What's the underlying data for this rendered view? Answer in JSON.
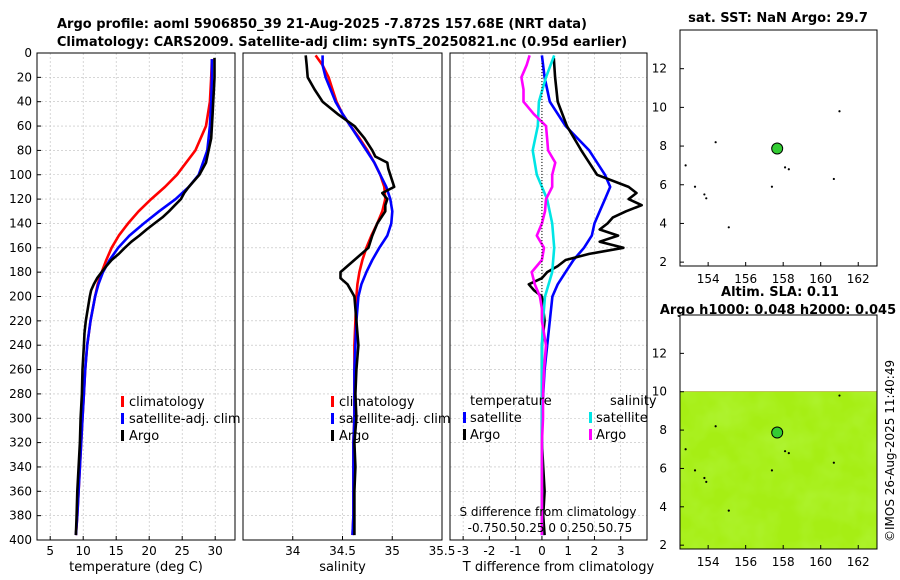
{
  "header": {
    "title_line1": "Argo profile: aoml 5906850_39 21-Aug-2025 -7.872S 157.68E (NRT data)",
    "title_line2": "Climatology: CARS2009. Satellite-adj clim: synTS_20250821.nc (0.95d earlier)"
  },
  "map_titles": {
    "sst": "sat. SST: NaN Argo: 29.7",
    "sla_line1": "Altim. SLA: 0.11",
    "sla_line2": "Argo h1000: 0.048 h2000: 0.045"
  },
  "watermark": "©IMOS 26-Aug-2025 11:40:49",
  "colors": {
    "climatology": "#ff0000",
    "satellite": "#0000ff",
    "argo": "#000000",
    "t_sat": "#0000ff",
    "s_sat": "#00e5e5",
    "s_argo": "#ff00ff",
    "argo_dot": "#33cc33"
  },
  "legends": {
    "temperature": [
      "climatology",
      "satellite-adj. clim",
      "Argo"
    ],
    "salinity": [
      "climatology",
      "satellite-adj. clim",
      "Argo"
    ],
    "diff_t_title": "temperature",
    "diff_s_title": "salinity",
    "diff_t_items": [
      "satellite",
      "Argo"
    ],
    "diff_s_items": [
      "satellite",
      "Argo"
    ]
  },
  "diff_caption": {
    "line1": "S difference from climatology",
    "line2": "-0.750.50.25 0 0.250.50.75"
  },
  "chart_data": [
    {
      "type": "line",
      "name": "temperature",
      "xlabel": "temperature (deg C)",
      "ylabel": "",
      "xlim": [
        3,
        33
      ],
      "ylim": [
        400,
        0
      ],
      "xticks": [
        5,
        10,
        15,
        20,
        25,
        30
      ],
      "yticks": [
        0,
        20,
        40,
        60,
        80,
        100,
        120,
        140,
        160,
        180,
        200,
        220,
        240,
        260,
        280,
        300,
        320,
        340,
        360,
        380,
        400
      ],
      "series": [
        {
          "name": "climatology",
          "depth": [
            5,
            20,
            40,
            60,
            80,
            100,
            110,
            120,
            130,
            140,
            150,
            160,
            170,
            180,
            190,
            200,
            220,
            240,
            260,
            280,
            300,
            320,
            340,
            360,
            380,
            396
          ],
          "values": [
            29.5,
            29.4,
            29.2,
            28.6,
            27.0,
            24.2,
            22.4,
            20.3,
            18.4,
            16.8,
            15.4,
            14.3,
            13.5,
            12.8,
            12.2,
            11.8,
            11.1,
            10.6,
            10.3,
            10.1,
            9.9,
            9.7,
            9.5,
            9.3,
            9.1,
            8.9
          ]
        },
        {
          "name": "satellite-adj. clim",
          "depth": [
            5,
            20,
            40,
            60,
            80,
            100,
            110,
            120,
            130,
            140,
            150,
            160,
            170,
            180,
            190,
            200,
            220,
            240,
            260,
            280,
            300,
            320,
            340,
            360,
            380,
            396
          ],
          "values": [
            29.5,
            29.5,
            29.4,
            29.2,
            28.8,
            27.5,
            26.0,
            24.0,
            21.5,
            19.2,
            17.0,
            15.3,
            14.0,
            13.0,
            12.3,
            11.8,
            11.1,
            10.6,
            10.3,
            10.1,
            9.9,
            9.7,
            9.5,
            9.3,
            9.1,
            8.9
          ]
        },
        {
          "name": "Argo",
          "depth": [
            4,
            10,
            20,
            30,
            40,
            50,
            60,
            70,
            80,
            90,
            100,
            110,
            115,
            120,
            125,
            130,
            135,
            140,
            145,
            150,
            155,
            160,
            165,
            170,
            175,
            180,
            185,
            190,
            195,
            200,
            210,
            220,
            230,
            240,
            260,
            280,
            300,
            320,
            340,
            360,
            380,
            396
          ],
          "values": [
            29.9,
            29.9,
            29.9,
            29.8,
            29.7,
            29.6,
            29.5,
            29.4,
            29.0,
            28.6,
            27.6,
            26.0,
            25.3,
            24.8,
            23.9,
            23.0,
            22.0,
            20.8,
            19.6,
            18.5,
            17.3,
            16.3,
            15.4,
            14.3,
            13.5,
            12.8,
            12.1,
            11.6,
            11.2,
            11.0,
            10.7,
            10.4,
            10.2,
            10.1,
            9.9,
            9.8,
            9.6,
            9.5,
            9.3,
            9.1,
            9.0,
            8.9
          ]
        }
      ]
    },
    {
      "type": "line",
      "name": "salinity",
      "xlabel": "salinity",
      "ylabel": "",
      "xlim": [
        33.5,
        35.5
      ],
      "ylim": [
        400,
        0
      ],
      "xticks": [
        34,
        34.5,
        35,
        35.5
      ],
      "series": [
        {
          "name": "climatology",
          "depth": [
            2,
            10,
            20,
            30,
            40,
            50,
            60,
            70,
            80,
            90,
            100,
            110,
            120,
            130,
            140,
            150,
            160,
            170,
            180,
            190,
            200,
            220,
            240,
            260,
            280,
            300,
            320,
            340,
            360,
            380,
            396
          ],
          "values": [
            34.23,
            34.3,
            34.36,
            34.4,
            34.44,
            34.5,
            34.58,
            34.67,
            34.75,
            34.82,
            34.88,
            34.92,
            34.93,
            34.9,
            34.85,
            34.79,
            34.74,
            34.7,
            34.67,
            34.65,
            34.64,
            34.63,
            34.62,
            34.62,
            34.62,
            34.62,
            34.61,
            34.61,
            34.61,
            34.61,
            34.6
          ]
        },
        {
          "name": "satellite-adj. clim",
          "depth": [
            2,
            10,
            20,
            30,
            40,
            50,
            60,
            70,
            80,
            90,
            100,
            110,
            120,
            130,
            140,
            150,
            160,
            170,
            180,
            190,
            200,
            220,
            240,
            260,
            280,
            300,
            320,
            340,
            360,
            380,
            396
          ],
          "values": [
            34.3,
            34.3,
            34.33,
            34.38,
            34.43,
            34.5,
            34.58,
            34.66,
            34.74,
            34.82,
            34.88,
            34.94,
            34.98,
            35.0,
            34.99,
            34.95,
            34.87,
            34.8,
            34.74,
            34.69,
            34.66,
            34.64,
            34.63,
            34.62,
            34.62,
            34.62,
            34.61,
            34.61,
            34.61,
            34.61,
            34.6
          ]
        },
        {
          "name": "Argo",
          "depth": [
            2,
            10,
            20,
            30,
            40,
            50,
            60,
            70,
            80,
            85,
            90,
            95,
            100,
            110,
            115,
            120,
            125,
            130,
            140,
            150,
            160,
            170,
            180,
            185,
            190,
            200,
            210,
            220,
            240,
            260,
            280,
            300,
            320,
            340,
            360,
            380,
            396
          ],
          "values": [
            34.13,
            34.14,
            34.15,
            34.22,
            34.3,
            34.45,
            34.62,
            34.72,
            34.8,
            34.83,
            34.95,
            34.96,
            34.98,
            35.02,
            34.9,
            34.95,
            34.93,
            34.93,
            34.85,
            34.8,
            34.76,
            34.62,
            34.48,
            34.48,
            34.55,
            34.62,
            34.63,
            34.64,
            34.66,
            34.64,
            34.63,
            34.64,
            34.62,
            34.63,
            34.62,
            34.62,
            34.62
          ]
        }
      ]
    },
    {
      "type": "line",
      "name": "difference",
      "xlabel": "T difference from climatology",
      "ylabel": "",
      "xlim": [
        -3.5,
        4
      ],
      "ylim": [
        400,
        0
      ],
      "xticks": [
        -3,
        -2,
        -1,
        0,
        1,
        2,
        3
      ],
      "series": [
        {
          "name": "temperature satellite",
          "depth": [
            2,
            20,
            40,
            60,
            80,
            100,
            110,
            120,
            130,
            140,
            150,
            160,
            170,
            180,
            190,
            200,
            220,
            240,
            260,
            280,
            300,
            320,
            340,
            360,
            380,
            396
          ],
          "values": [
            0.0,
            0.1,
            0.3,
            0.9,
            1.8,
            2.4,
            2.6,
            2.4,
            2.2,
            2.0,
            1.9,
            1.6,
            1.2,
            0.9,
            0.6,
            0.4,
            0.3,
            0.2,
            0.1,
            0.05,
            0.0,
            0.0,
            0.0,
            0.0,
            0.0,
            0.0
          ]
        },
        {
          "name": "temperature Argo",
          "depth": [
            4,
            20,
            40,
            60,
            80,
            100,
            110,
            115,
            120,
            125,
            130,
            135,
            140,
            145,
            150,
            155,
            160,
            165,
            170,
            175,
            180,
            185,
            190,
            195,
            200,
            210,
            220,
            240,
            260,
            280,
            300,
            320,
            340,
            360,
            380,
            396
          ],
          "values": [
            0.45,
            0.5,
            0.6,
            0.95,
            1.5,
            2.1,
            3.3,
            3.6,
            3.3,
            3.8,
            3.2,
            2.7,
            2.5,
            2.2,
            2.9,
            2.2,
            3.1,
            1.8,
            0.9,
            0.6,
            0.2,
            0.0,
            -0.5,
            -0.3,
            0.0,
            0.05,
            0.1,
            0.0,
            0.0,
            0.0,
            0.0,
            0.0,
            0.05,
            0.1,
            0.05,
            0.1
          ]
        },
        {
          "name": "salinity satellite",
          "depth": [
            2,
            20,
            40,
            60,
            80,
            100,
            120,
            140,
            160,
            180,
            200,
            220,
            240,
            260,
            280,
            300,
            320,
            340,
            360,
            380,
            396
          ],
          "values": [
            0.12,
            0.04,
            -0.03,
            -0.04,
            -0.09,
            -0.05,
            0.05,
            0.1,
            0.12,
            0.1,
            0.03,
            0.01,
            0.0,
            0.0,
            0.0,
            0.0,
            0.0,
            0.0,
            0.0,
            0.0,
            0.0
          ]
        },
        {
          "name": "salinity Argo",
          "depth": [
            2,
            10,
            20,
            30,
            40,
            50,
            60,
            70,
            80,
            90,
            100,
            110,
            120,
            130,
            140,
            150,
            160,
            170,
            180,
            190,
            200,
            210,
            220,
            240,
            260,
            280,
            300,
            320,
            340,
            360,
            380,
            396
          ],
          "values": [
            -0.12,
            -0.15,
            -0.2,
            -0.18,
            -0.18,
            -0.08,
            0.04,
            0.05,
            0.06,
            0.13,
            0.1,
            0.1,
            0.04,
            0.03,
            0.0,
            -0.05,
            0.02,
            0.0,
            -0.1,
            -0.07,
            -0.02,
            0.0,
            0.0,
            0.04,
            0.02,
            0.01,
            0.01,
            0.0,
            0.0,
            0.0,
            0.0,
            0.0
          ]
        }
      ]
    },
    {
      "type": "scatter",
      "name": "sst_map",
      "title": "sat. SST: NaN Argo: 29.7",
      "xlim": [
        152.5,
        163
      ],
      "ylim": [
        1.8,
        14
      ],
      "xticks": [
        154,
        156,
        158,
        160,
        162
      ],
      "yticks": [
        2,
        4,
        6,
        8,
        10,
        12
      ],
      "argo_position": {
        "lon": 157.68,
        "lat": 7.872
      }
    },
    {
      "type": "heatmap",
      "name": "sla_map",
      "title": "Altim. SLA: 0.11",
      "xlim": [
        152.5,
        163
      ],
      "ylim": [
        1.8,
        14
      ],
      "xticks": [
        154,
        156,
        158,
        160,
        162
      ],
      "yticks": [
        2,
        4,
        6,
        8,
        10,
        12
      ],
      "data_top_lat": 10,
      "argo_position": {
        "lon": 157.68,
        "lat": 7.872
      }
    }
  ]
}
